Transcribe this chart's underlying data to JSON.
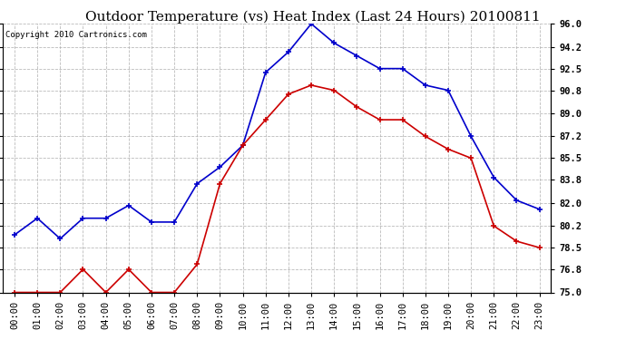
{
  "title": "Outdoor Temperature (vs) Heat Index (Last 24 Hours) 20100811",
  "copyright": "Copyright 2010 Cartronics.com",
  "x_labels": [
    "00:00",
    "01:00",
    "02:00",
    "03:00",
    "04:00",
    "05:00",
    "06:00",
    "07:00",
    "08:00",
    "09:00",
    "10:00",
    "11:00",
    "12:00",
    "13:00",
    "14:00",
    "15:00",
    "16:00",
    "17:00",
    "18:00",
    "19:00",
    "20:00",
    "21:00",
    "22:00",
    "23:00"
  ],
  "blue_temp": [
    79.5,
    80.8,
    79.2,
    80.8,
    80.8,
    81.8,
    80.5,
    80.5,
    83.5,
    84.8,
    86.5,
    92.2,
    93.8,
    96.0,
    94.5,
    93.5,
    92.5,
    92.5,
    91.2,
    90.8,
    87.2,
    84.0,
    82.2,
    81.5
  ],
  "red_heat": [
    75.0,
    75.0,
    75.0,
    76.8,
    75.0,
    76.8,
    75.0,
    75.0,
    77.2,
    83.5,
    86.5,
    88.5,
    90.5,
    91.2,
    90.8,
    89.5,
    88.5,
    88.5,
    87.2,
    86.2,
    85.5,
    80.2,
    79.0,
    78.5
  ],
  "blue_color": "#0000CC",
  "red_color": "#CC0000",
  "bg_color": "#FFFFFF",
  "plot_bg_color": "#FFFFFF",
  "grid_color": "#AAAAAA",
  "ylim": [
    75.0,
    96.0
  ],
  "yticks": [
    75.0,
    76.8,
    78.5,
    80.2,
    82.0,
    83.8,
    85.5,
    87.2,
    89.0,
    90.8,
    92.5,
    94.2,
    96.0
  ],
  "title_fontsize": 11,
  "copyright_fontsize": 6.5,
  "tick_fontsize": 7.5,
  "marker": "+",
  "markersize": 5,
  "linewidth": 1.2
}
